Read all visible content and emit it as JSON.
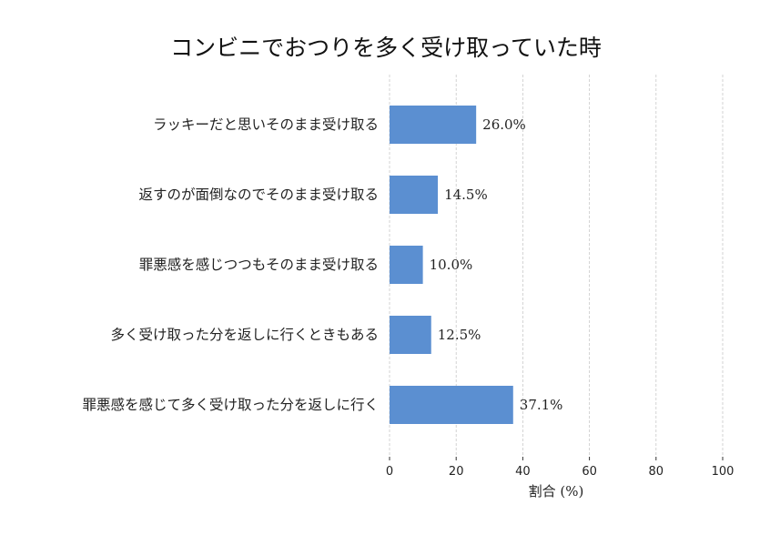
{
  "chart_data": {
    "type": "bar",
    "orientation": "horizontal",
    "title": "コンビニでおつりを多く受け取っていた時",
    "xlabel": "割合 (%)",
    "ylabel": "",
    "xlim": [
      0,
      100
    ],
    "x_ticks": [
      "0",
      "20",
      "40",
      "60",
      "80",
      "100"
    ],
    "grid": true,
    "bar_color": "#5b8fd1",
    "categories": [
      "ラッキーだと思いそのまま受け取る",
      "返すのが面倒なのでそのまま受け取る",
      "罪悪感を感じつつもそのまま受け取る",
      "多く受け取った分を返しに行くときもある",
      "罪悪感を感じて多く受け取った分を返しに行く"
    ],
    "values": [
      26.0,
      14.5,
      10.0,
      12.5,
      37.1
    ],
    "value_labels": [
      "26.0%",
      "14.5%",
      "10.0%",
      "12.5%",
      "37.1%"
    ]
  }
}
